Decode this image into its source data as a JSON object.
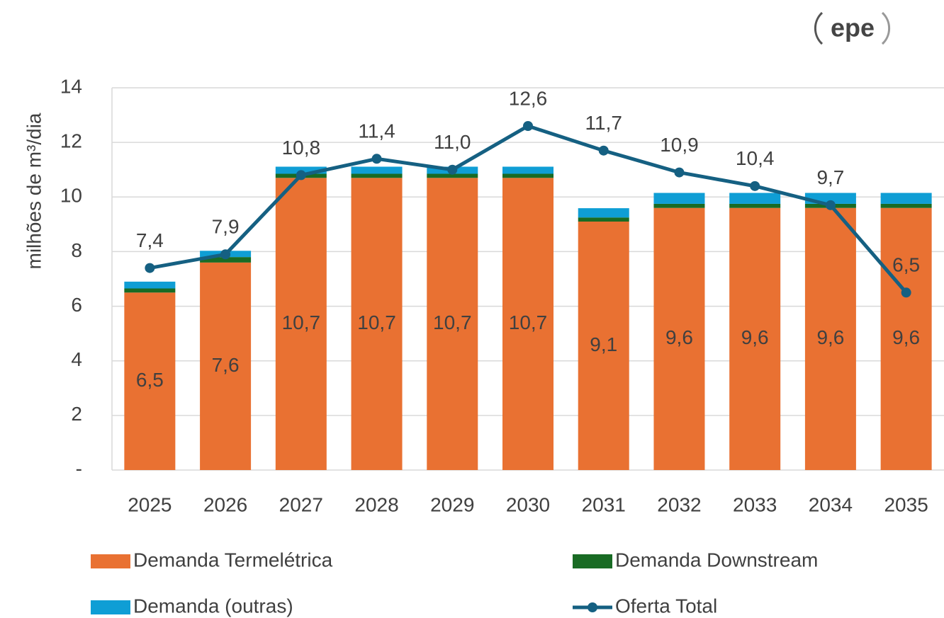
{
  "chart_data": {
    "type": "bar",
    "logo": "epe",
    "y_label": "milhões de m³/dia",
    "categories": [
      "2025",
      "2026",
      "2027",
      "2028",
      "2029",
      "2030",
      "2031",
      "2032",
      "2033",
      "2034",
      "2035"
    ],
    "series": [
      {
        "name": "Demanda Termelétrica",
        "color": "#E97132",
        "values": [
          6.5,
          7.6,
          10.7,
          10.7,
          10.7,
          10.7,
          9.1,
          9.6,
          9.6,
          9.6,
          9.6
        ],
        "value_labels": [
          "6,5",
          "7,6",
          "10,7",
          "10,7",
          "10,7",
          "10,7",
          "9,1",
          "9,6",
          "9,6",
          "9,6",
          "9,6"
        ]
      },
      {
        "name": "Demanda Downstream",
        "color": "#196B24",
        "values": [
          0.15,
          0.2,
          0.15,
          0.15,
          0.15,
          0.15,
          0.15,
          0.15,
          0.15,
          0.15,
          0.15
        ]
      },
      {
        "name": "Demanda (outras)",
        "color": "#0F9ED5",
        "values": [
          0.25,
          0.23,
          0.26,
          0.26,
          0.26,
          0.26,
          0.34,
          0.4,
          0.4,
          0.4,
          0.4
        ]
      },
      {
        "name": "Oferta Total",
        "type": "line",
        "color": "#156082",
        "values": [
          7.4,
          7.9,
          10.8,
          11.4,
          11.0,
          12.6,
          11.7,
          10.9,
          10.4,
          9.7,
          6.5
        ],
        "value_labels": [
          "7,4",
          "7,9",
          "10,8",
          "11,4",
          "11,0",
          "12,6",
          "11,7",
          "10,9",
          "10,4",
          "9,7",
          "6,5"
        ]
      }
    ],
    "ylim": [
      0,
      14
    ],
    "yticks": [
      {
        "value": 0,
        "label": "-"
      },
      2,
      4,
      6,
      8,
      10,
      12,
      14
    ],
    "grid": true,
    "legend": "bottom"
  }
}
